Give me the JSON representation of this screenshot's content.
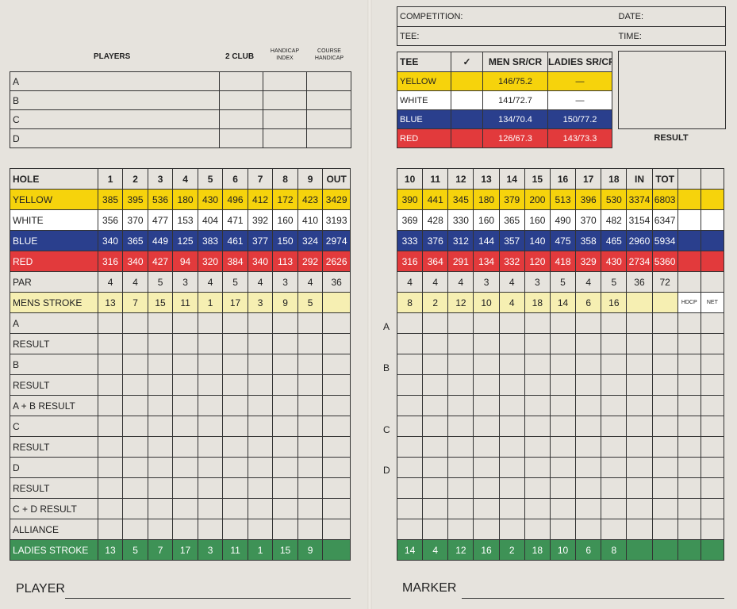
{
  "players_header": {
    "players": "PLAYERS",
    "two_club": "2 CLUB",
    "handicap_index": "HANDICAP INDEX",
    "course_handicap": "COURSE HANDICAP"
  },
  "player_rows": [
    "A",
    "B",
    "C",
    "D"
  ],
  "competition": {
    "competition": "COMPETITION:",
    "date": "DATE:",
    "tee": "TEE:",
    "time": "TIME:"
  },
  "tee_table": {
    "headers": [
      "TEE",
      "✓",
      "MEN SR/CR",
      "LADIES SR/CR"
    ],
    "rows": [
      {
        "tee": "YELLOW",
        "check": "",
        "men": "146/75.2",
        "ladies": "—"
      },
      {
        "tee": "WHITE",
        "check": "",
        "men": "141/72.7",
        "ladies": "—"
      },
      {
        "tee": "BLUE",
        "check": "",
        "men": "134/70.4",
        "ladies": "150/77.2"
      },
      {
        "tee": "RED",
        "check": "",
        "men": "126/67.3",
        "ladies": "143/73.3"
      }
    ]
  },
  "result_label": "RESULT",
  "front": {
    "header": [
      "HOLE",
      "1",
      "2",
      "3",
      "4",
      "5",
      "6",
      "7",
      "8",
      "9",
      "OUT"
    ],
    "yellow": [
      "YELLOW",
      "385",
      "395",
      "536",
      "180",
      "430",
      "496",
      "412",
      "172",
      "423",
      "3429"
    ],
    "white": [
      "WHITE",
      "356",
      "370",
      "477",
      "153",
      "404",
      "471",
      "392",
      "160",
      "410",
      "3193"
    ],
    "blue": [
      "BLUE",
      "340",
      "365",
      "449",
      "125",
      "383",
      "461",
      "377",
      "150",
      "324",
      "2974"
    ],
    "red": [
      "RED",
      "316",
      "340",
      "427",
      "94",
      "320",
      "384",
      "340",
      "113",
      "292",
      "2626"
    ],
    "par": [
      "PAR",
      "4",
      "4",
      "5",
      "3",
      "4",
      "5",
      "4",
      "3",
      "4",
      "36"
    ],
    "mens_stroke": [
      "MENS STROKE",
      "13",
      "7",
      "15",
      "11",
      "1",
      "17",
      "3",
      "9",
      "5",
      ""
    ],
    "score_labels": [
      "A",
      "RESULT",
      "B",
      "RESULT",
      "A + B RESULT",
      "C",
      "RESULT",
      "D",
      "RESULT",
      "C + D RESULT",
      "ALLIANCE"
    ],
    "ladies_stroke": [
      "LADIES STROKE",
      "13",
      "5",
      "7",
      "17",
      "3",
      "11",
      "1",
      "15",
      "9",
      ""
    ]
  },
  "back": {
    "header": [
      "10",
      "11",
      "12",
      "13",
      "14",
      "15",
      "16",
      "17",
      "18",
      "IN",
      "TOT",
      ""
    ],
    "yellow": [
      "390",
      "441",
      "345",
      "180",
      "379",
      "200",
      "513",
      "396",
      "530",
      "3374",
      "6803",
      ""
    ],
    "white": [
      "369",
      "428",
      "330",
      "160",
      "365",
      "160",
      "490",
      "370",
      "482",
      "3154",
      "6347",
      ""
    ],
    "blue": [
      "333",
      "376",
      "312",
      "144",
      "357",
      "140",
      "475",
      "358",
      "465",
      "2960",
      "5934",
      ""
    ],
    "red": [
      "316",
      "364",
      "291",
      "134",
      "332",
      "120",
      "418",
      "329",
      "430",
      "2734",
      "5360",
      ""
    ],
    "par": [
      "4",
      "4",
      "4",
      "3",
      "4",
      "3",
      "5",
      "4",
      "5",
      "36",
      "72",
      ""
    ],
    "mens_stroke": [
      "8",
      "2",
      "12",
      "10",
      "4",
      "18",
      "14",
      "6",
      "16",
      "",
      "",
      "HDCP",
      "NET"
    ],
    "ladies_stroke": [
      "14",
      "4",
      "12",
      "16",
      "2",
      "18",
      "10",
      "6",
      "8",
      "",
      "",
      "",
      ""
    ]
  },
  "side_letters": [
    "A",
    "B",
    "C",
    "D"
  ],
  "footer": {
    "player": "PLAYER",
    "marker": "MARKER"
  }
}
